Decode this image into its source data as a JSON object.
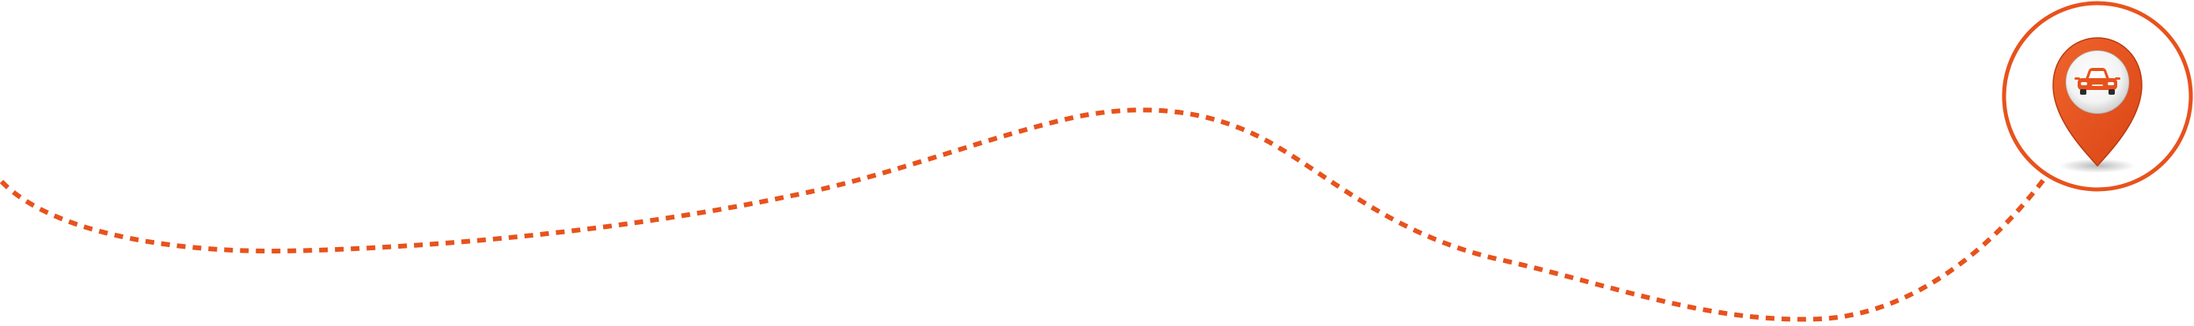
{
  "route": {
    "style": "dashed",
    "color": "#e8521c"
  },
  "marker": {
    "icon": "car-icon",
    "pin_icon": "map-pin-icon",
    "ring_color": "#e8521c",
    "pin_color": "#e8521c",
    "pin_edge_color": "#b83a10",
    "badge_color": "#ffffff",
    "car_color": "#e8521c"
  }
}
